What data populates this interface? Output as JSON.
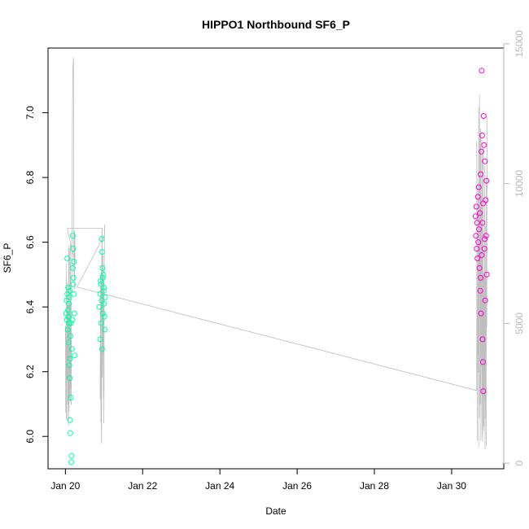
{
  "chart_data": {
    "type": "scatter",
    "title": "HIPPO1 Northbound SF6_P",
    "xlabel": "Date",
    "ylabel": "SF6_P",
    "x_ticks": [
      "Jan 20",
      "Jan 22",
      "Jan 24",
      "Jan 26",
      "Jan 28",
      "Jan 30"
    ],
    "y_ticks": [
      "6.0",
      "6.2",
      "6.4",
      "6.6",
      "6.8",
      "7.0"
    ],
    "y2_ticks": [
      "0",
      "5000",
      "10000",
      "15000"
    ],
    "xlim": [
      19.55,
      31.35
    ],
    "ylim": [
      5.9,
      7.2
    ],
    "y2lim": [
      -200,
      14850
    ],
    "grid": false,
    "colors": {
      "series1": "#00ffa6",
      "series2": "#ff00d2",
      "altitude": "#bebebe"
    },
    "series": [
      {
        "x_range": [
          20.0,
          20.25
        ],
        "points": [
          [
            20.02,
            6.38
          ],
          [
            20.03,
            6.42
          ],
          [
            20.04,
            6.36
          ],
          [
            20.05,
            6.44
          ],
          [
            20.06,
            6.33
          ],
          [
            20.07,
            6.46
          ],
          [
            20.08,
            6.29
          ],
          [
            20.09,
            6.35
          ],
          [
            20.1,
            6.22
          ],
          [
            20.11,
            6.18
          ],
          [
            20.12,
            6.05
          ],
          [
            20.13,
            6.01
          ],
          [
            20.15,
            5.92
          ],
          [
            20.16,
            5.94
          ],
          [
            20.14,
            6.12
          ],
          [
            20.12,
            6.24
          ],
          [
            20.18,
            6.36
          ],
          [
            20.19,
            6.52
          ],
          [
            20.19,
            6.62
          ],
          [
            20.2,
            6.58
          ],
          [
            20.21,
            6.49
          ],
          [
            20.22,
            6.44
          ],
          [
            20.23,
            6.38
          ],
          [
            20.24,
            6.25
          ],
          [
            20.05,
            6.55
          ],
          [
            20.07,
            6.39
          ],
          [
            20.09,
            6.41
          ],
          [
            20.11,
            6.45
          ],
          [
            20.13,
            6.31
          ],
          [
            20.17,
            6.27
          ],
          [
            20.2,
            6.47
          ],
          [
            20.22,
            6.54
          ],
          [
            20.08,
            6.37
          ],
          [
            20.1,
            6.43
          ],
          [
            20.14,
            6.35
          ]
        ]
      },
      {
        "x_range": [
          20.85,
          21.05
        ],
        "points": [
          [
            20.88,
            6.4
          ],
          [
            20.9,
            6.44
          ],
          [
            20.92,
            6.47
          ],
          [
            20.94,
            6.61
          ],
          [
            20.95,
            6.57
          ],
          [
            20.96,
            6.52
          ],
          [
            20.97,
            6.49
          ],
          [
            20.99,
            6.45
          ],
          [
            21.0,
            6.41
          ],
          [
            21.01,
            6.37
          ],
          [
            21.02,
            6.33
          ],
          [
            20.9,
            6.3
          ],
          [
            20.93,
            6.35
          ],
          [
            20.95,
            6.27
          ],
          [
            20.98,
            6.5
          ],
          [
            20.91,
            6.48
          ],
          [
            20.94,
            6.42
          ],
          [
            20.97,
            6.38
          ],
          [
            21.0,
            6.46
          ],
          [
            21.03,
            6.43
          ]
        ]
      },
      {
        "x_range": [
          30.6,
          30.95
        ],
        "points": [
          [
            30.62,
            6.68
          ],
          [
            30.63,
            6.62
          ],
          [
            30.64,
            6.71
          ],
          [
            30.65,
            6.58
          ],
          [
            30.66,
            6.66
          ],
          [
            30.67,
            6.55
          ],
          [
            30.68,
            6.74
          ],
          [
            30.69,
            6.6
          ],
          [
            30.7,
            6.77
          ],
          [
            30.71,
            6.64
          ],
          [
            30.72,
            6.52
          ],
          [
            30.73,
            6.69
          ],
          [
            30.74,
            6.45
          ],
          [
            30.75,
            6.81
          ],
          [
            30.76,
            6.38
          ],
          [
            30.77,
            6.88
          ],
          [
            30.78,
            7.13
          ],
          [
            30.79,
            6.93
          ],
          [
            30.8,
            6.3
          ],
          [
            30.81,
            6.23
          ],
          [
            30.82,
            6.14
          ],
          [
            30.83,
            6.99
          ],
          [
            30.84,
            6.9
          ],
          [
            30.85,
            6.58
          ],
          [
            30.86,
            6.85
          ],
          [
            30.87,
            6.42
          ],
          [
            30.88,
            6.73
          ],
          [
            30.89,
            6.62
          ],
          [
            30.9,
            6.79
          ],
          [
            30.91,
            6.5
          ],
          [
            30.75,
            6.49
          ],
          [
            30.78,
            6.56
          ],
          [
            30.8,
            6.66
          ],
          [
            30.82,
            6.72
          ],
          [
            30.86,
            6.61
          ]
        ]
      }
    ]
  }
}
